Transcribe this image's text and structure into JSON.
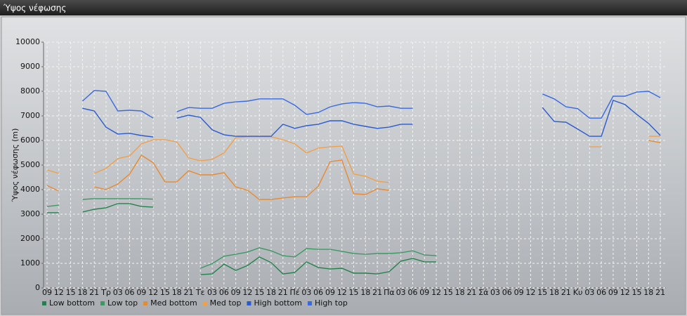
{
  "chart_data": {
    "type": "line",
    "title": "Ύψος νέφωσης",
    "y_label": "Ύψος νέφωσης (m)",
    "categories": [
      "09",
      "12",
      "15",
      "18",
      "21",
      "Τρ",
      "03",
      "06",
      "09",
      "12",
      "15",
      "18",
      "21",
      "Τε",
      "03",
      "06",
      "09",
      "12",
      "15",
      "18",
      "21",
      "Πέ",
      "03",
      "06",
      "09",
      "12",
      "15",
      "18",
      "21",
      "Πα",
      "03",
      "06",
      "09",
      "12",
      "15",
      "18",
      "21",
      "Σά",
      "03",
      "06",
      "09",
      "12",
      "15",
      "18",
      "21",
      "Κυ",
      "03",
      "06",
      "09",
      "12",
      "15",
      "18",
      "21"
    ],
    "ylim": [
      0,
      10000
    ],
    "yticks": [
      0,
      1000,
      2000,
      3000,
      4000,
      5000,
      6000,
      7000,
      8000,
      9000,
      10000
    ],
    "grid": true,
    "series": [
      {
        "name": "Low bottom",
        "color": "#23824a",
        "values": [
          3060,
          3060,
          null,
          3090,
          3200,
          3260,
          3430,
          3430,
          3310,
          3290,
          null,
          null,
          null,
          540,
          570,
          970,
          710,
          910,
          1260,
          1030,
          570,
          630,
          1060,
          830,
          770,
          800,
          600,
          600,
          570,
          660,
          1090,
          1200,
          1060,
          1060,
          null,
          null,
          null,
          null,
          null,
          null,
          null,
          null,
          null,
          null,
          null,
          null,
          null,
          null,
          null,
          null,
          null,
          null,
          null
        ]
      },
      {
        "name": "Low top",
        "color": "#3a9a62",
        "values": [
          3310,
          3370,
          null,
          3600,
          3630,
          3630,
          3630,
          3630,
          3630,
          3610,
          null,
          null,
          null,
          800,
          990,
          1290,
          1370,
          1460,
          1630,
          1510,
          1310,
          1260,
          1600,
          1570,
          1570,
          1490,
          1400,
          1370,
          1400,
          1400,
          1430,
          1510,
          1340,
          1310,
          null,
          null,
          null,
          null,
          null,
          null,
          null,
          null,
          null,
          null,
          null,
          null,
          null,
          null,
          null,
          null,
          null,
          null,
          null
        ]
      },
      {
        "name": "Med bottom",
        "color": "#e88a30",
        "values": [
          4170,
          3940,
          null,
          null,
          4110,
          4000,
          4230,
          4630,
          5400,
          5090,
          4310,
          4310,
          4770,
          4600,
          4600,
          4690,
          4110,
          3970,
          3600,
          3600,
          3660,
          3710,
          3710,
          4140,
          5140,
          5200,
          3830,
          3800,
          4030,
          3970,
          null,
          null,
          null,
          null,
          null,
          null,
          null,
          null,
          null,
          null,
          null,
          null,
          null,
          null,
          null,
          null,
          null,
          null,
          null,
          null,
          null,
          6000,
          5910
        ]
      },
      {
        "name": "Med top",
        "color": "#f0a048",
        "values": [
          4800,
          4660,
          null,
          null,
          4660,
          4860,
          5260,
          5370,
          5860,
          6030,
          6030,
          5940,
          5290,
          5170,
          5230,
          5490,
          6110,
          6150,
          6150,
          6150,
          6030,
          5860,
          5490,
          5690,
          5740,
          5770,
          4630,
          4540,
          4340,
          4290,
          null,
          null,
          null,
          null,
          null,
          null,
          null,
          null,
          null,
          null,
          null,
          null,
          null,
          null,
          null,
          null,
          5740,
          5740,
          null,
          null,
          null,
          6170,
          6170
        ]
      },
      {
        "name": "High bottom",
        "color": "#2a5ad0",
        "values": [
          null,
          null,
          null,
          7310,
          7200,
          6540,
          6260,
          6290,
          6200,
          6140,
          null,
          6910,
          7030,
          6940,
          6430,
          6230,
          6170,
          6170,
          6170,
          6170,
          6660,
          6490,
          6600,
          6660,
          6800,
          6800,
          6660,
          6570,
          6490,
          6540,
          6660,
          6660,
          null,
          null,
          null,
          null,
          null,
          null,
          null,
          null,
          null,
          null,
          7340,
          6770,
          6740,
          6460,
          6170,
          6170,
          7630,
          7460,
          7060,
          6690,
          6200
        ]
      },
      {
        "name": "High top",
        "color": "#3a6ae2",
        "values": [
          null,
          null,
          null,
          7600,
          8030,
          8000,
          7200,
          7230,
          7200,
          6910,
          null,
          7170,
          7340,
          7310,
          7310,
          7510,
          7570,
          7600,
          7690,
          7690,
          7690,
          7430,
          7060,
          7140,
          7370,
          7490,
          7540,
          7510,
          7370,
          7400,
          7310,
          7310,
          null,
          null,
          null,
          null,
          null,
          null,
          null,
          null,
          null,
          null,
          7890,
          7690,
          7370,
          7290,
          6910,
          6910,
          7800,
          7800,
          7970,
          8000,
          7740
        ]
      }
    ]
  }
}
